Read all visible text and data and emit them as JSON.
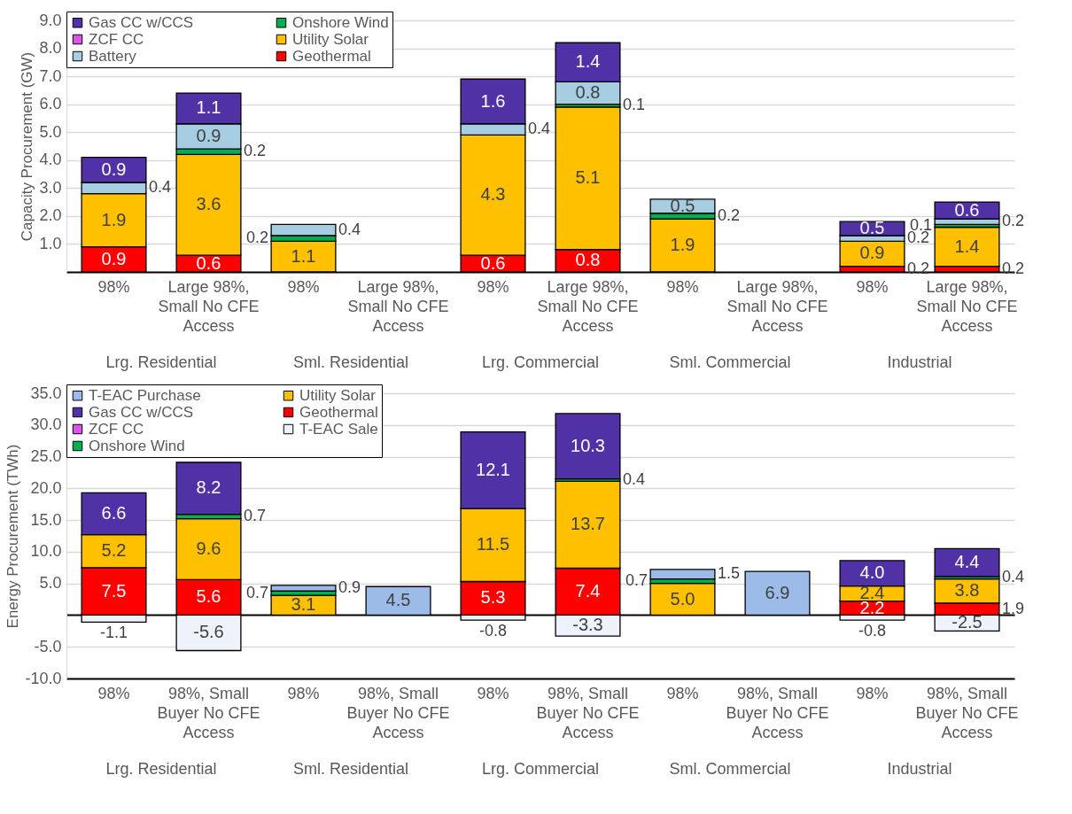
{
  "chart_data": [
    {
      "type": "bar",
      "stacked": true,
      "ylabel": "Capacity Procurement (GW)",
      "legend": "top left",
      "grid": "y",
      "categories": [
        "98%",
        "Large 98%, Small No CFE Access",
        "98%",
        "Large 98%, Small No CFE Access",
        "98%",
        "Large 98%, Small No CFE Access",
        "98%",
        "Large 98%, Small No CFE Access",
        "98%",
        "Large 98%, Small No CFE Access"
      ],
      "annotations": [
        "Lrg. Residential",
        "Sml. Residential",
        "Lrg. Commercial",
        "Sml. Commercial",
        "Industrial"
      ],
      "ylim": [
        0,
        9
      ],
      "yticks": [
        {
          "value": 1,
          "label": "1.0"
        },
        {
          "value": 2,
          "label": "2.0"
        },
        {
          "value": 3,
          "label": "3.0"
        },
        {
          "value": 4,
          "label": "4.0"
        },
        {
          "value": 5,
          "label": "5.0"
        },
        {
          "value": 6,
          "label": "6.0"
        },
        {
          "value": 7,
          "label": "7.0"
        },
        {
          "value": 8,
          "label": "8.0"
        },
        {
          "value": 9,
          "label": "9.0"
        }
      ],
      "series": [
        {
          "name": "Geothermal",
          "color": "#ff0000",
          "values": [
            0.9,
            0.6,
            null,
            null,
            0.6,
            0.8,
            null,
            null,
            0.2,
            0.2
          ],
          "value_labels": [
            "0.9",
            "0.6",
            null,
            null,
            "0.6",
            "0.8",
            null,
            null,
            "0.2",
            "0.2"
          ]
        },
        {
          "name": "Utility Solar",
          "color": "#ffc000",
          "values": [
            1.9,
            3.6,
            1.1,
            null,
            4.3,
            5.1,
            1.9,
            null,
            0.9,
            1.4
          ],
          "value_labels": [
            "1.9",
            "3.6",
            "1.1",
            null,
            "4.3",
            "5.1",
            "1.9",
            null,
            "0.9",
            "1.4"
          ]
        },
        {
          "name": "Onshore Wind",
          "color": "#00b050",
          "values": [
            null,
            0.2,
            0.2,
            null,
            null,
            0.1,
            0.2,
            null,
            null,
            0.1
          ],
          "value_labels": [
            null,
            "0.2",
            "0.2",
            null,
            null,
            "0.1",
            "0.2",
            null,
            null,
            "0.1"
          ]
        },
        {
          "name": "Battery",
          "color": "#a6cde2",
          "values": [
            0.4,
            0.9,
            0.4,
            null,
            0.4,
            0.8,
            0.5,
            null,
            0.2,
            0.2
          ],
          "value_labels": [
            "0.4",
            "0.9",
            "0.4",
            null,
            "0.4",
            "0.8",
            "0.5",
            null,
            "0.2",
            "0.2"
          ]
        },
        {
          "name": "ZCF CC",
          "color": "#dd55e8",
          "values": [
            null,
            null,
            null,
            null,
            null,
            null,
            null,
            null,
            null,
            null
          ]
        },
        {
          "name": "Gas CC w/CCS",
          "color": "#5032a6",
          "values": [
            0.9,
            1.1,
            null,
            null,
            1.6,
            1.4,
            null,
            null,
            0.5,
            0.6
          ],
          "value_labels": [
            "0.9",
            "1.1",
            null,
            null,
            "1.6",
            "1.4",
            null,
            null,
            "0.5",
            "0.6"
          ]
        }
      ]
    },
    {
      "type": "bar",
      "stacked": true,
      "ylabel": "Energy Procurement (TWh)",
      "legend": "top left",
      "grid": "y",
      "categories": [
        "98%",
        "98%, Small Buyer No CFE Access",
        "98%",
        "98%, Small Buyer No CFE Access",
        "98%",
        "98%, Small Buyer No CFE Access",
        "98%",
        "98%, Small Buyer No CFE Access",
        "98%",
        "98%, Small Buyer No CFE Access"
      ],
      "annotations": [
        "Lrg. Residential",
        "Sml. Residential",
        "Lrg. Commercial",
        "Sml. Commercial",
        "Industrial"
      ],
      "ylim": [
        -10,
        35
      ],
      "yticks": [
        {
          "value": -10,
          "label": "-10.0"
        },
        {
          "value": -5,
          "label": "-5.0"
        },
        {
          "value": 0,
          "label": null
        },
        {
          "value": 5,
          "label": "5.0"
        },
        {
          "value": 10,
          "label": "10.0"
        },
        {
          "value": 15,
          "label": "15.0"
        },
        {
          "value": 20,
          "label": "20.0"
        },
        {
          "value": 25,
          "label": "25.0"
        },
        {
          "value": 30,
          "label": "30.0"
        },
        {
          "value": 35,
          "label": "35.0"
        }
      ],
      "series": [
        {
          "name": "T-EAC Sale",
          "color": "#eef3fb",
          "values": [
            -1.1,
            -5.6,
            null,
            null,
            -0.8,
            -3.3,
            null,
            null,
            -0.8,
            -2.5
          ],
          "value_labels": [
            "-1.1",
            "-5.6",
            null,
            null,
            "-0.8",
            "-3.3",
            null,
            null,
            "-0.8",
            "-2.5"
          ]
        },
        {
          "name": "Geothermal",
          "color": "#ff0000",
          "values": [
            7.5,
            5.6,
            null,
            null,
            5.3,
            7.4,
            null,
            null,
            2.2,
            1.9
          ],
          "value_labels": [
            "7.5",
            "5.6",
            null,
            null,
            "5.3",
            "7.4",
            null,
            null,
            "2.2",
            "1.9"
          ]
        },
        {
          "name": "Utility Solar",
          "color": "#ffc000",
          "values": [
            5.2,
            9.6,
            3.1,
            null,
            11.5,
            13.7,
            5.0,
            null,
            2.4,
            3.8
          ],
          "value_labels": [
            "5.2",
            "9.6",
            "3.1",
            null,
            "11.5",
            "13.7",
            "5.0",
            null,
            "2.4",
            "3.8"
          ]
        },
        {
          "name": "Onshore Wind",
          "color": "#00b050",
          "values": [
            null,
            0.7,
            0.7,
            null,
            null,
            0.4,
            0.7,
            null,
            null,
            0.4
          ],
          "value_labels": [
            null,
            "0.7",
            "0.7",
            null,
            null,
            "0.4",
            "0.7",
            null,
            null,
            "0.4"
          ]
        },
        {
          "name": "ZCF CC",
          "color": "#dd55e8",
          "values": [
            null,
            null,
            null,
            null,
            null,
            null,
            null,
            null,
            null,
            null
          ]
        },
        {
          "name": "Gas CC w/CCS",
          "color": "#5032a6",
          "values": [
            6.6,
            8.2,
            null,
            null,
            12.1,
            10.3,
            null,
            null,
            4.0,
            4.4
          ],
          "value_labels": [
            "6.6",
            "8.2",
            null,
            null,
            "12.1",
            "10.3",
            null,
            null,
            "4.0",
            "4.4"
          ]
        },
        {
          "name": "T-EAC Purchase",
          "color": "#9dbbe8",
          "values": [
            null,
            null,
            0.9,
            4.5,
            null,
            null,
            1.5,
            6.9,
            null,
            null
          ],
          "value_labels": [
            null,
            null,
            "0.9",
            "4.5",
            null,
            null,
            "1.5",
            "6.9",
            null,
            null
          ]
        }
      ]
    }
  ]
}
